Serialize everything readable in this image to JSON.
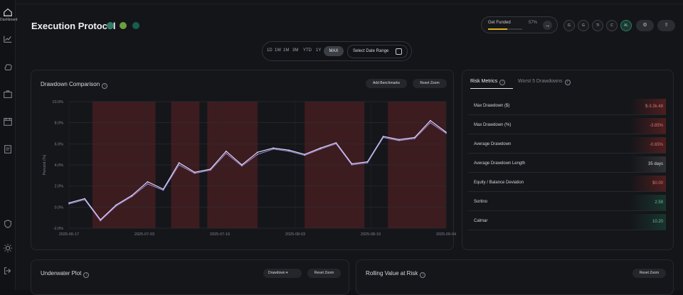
{
  "sidebar": {
    "active_label": "Dashboard",
    "icons": [
      "dashboard-icon",
      "chart-icon",
      "brain-icon",
      "briefcase-icon",
      "calendar-icon",
      "document-icon",
      "shield-icon",
      "settings-icon",
      "logout-icon"
    ]
  },
  "header": {
    "title": "Execution Protocol",
    "funded_label": "Get Funded",
    "funded_percent": "57%",
    "funded_progress": 0.57,
    "circles": [
      "G",
      "G",
      "TI",
      "C",
      "AL"
    ],
    "accent_gold": "#e0b11b"
  },
  "range_selector": {
    "tabs": [
      "1D",
      "1W",
      "1M",
      "3M",
      "YTD",
      "1Y"
    ],
    "active": "MAX",
    "date_button": "Select Date Range"
  },
  "drawdown_panel": {
    "title": "Drawdown Comparison",
    "add_benchmarks": "Add Benchmarks",
    "reset_zoom": "Reset Zoom"
  },
  "chart_data": {
    "type": "line",
    "x": [
      "2025-06-17",
      "2025-06-20",
      "2025-06-24",
      "2025-06-27",
      "2025-07-01",
      "2025-07-03",
      "2025-07-07",
      "2025-07-09",
      "2025-07-11",
      "2025-07-14",
      "2025-07-16",
      "2025-07-19",
      "2025-07-23",
      "2025-07-27",
      "2025-07-31",
      "2025-08-03",
      "2025-08-07",
      "2025-08-10",
      "2025-08-13",
      "2025-08-17",
      "2025-08-20",
      "2025-08-24",
      "2025-08-28",
      "2025-09-01",
      "2025-09-04"
    ],
    "series": [
      {
        "values": [
          0.4,
          0.8,
          -1.2,
          0.2,
          1.1,
          2.4,
          1.7,
          4.2,
          3.3,
          3.6,
          5.3,
          4.0,
          5.2,
          5.6,
          5.4,
          5.0,
          5.6,
          6.1,
          4.1,
          4.3,
          6.7,
          6.4,
          6.6,
          8.2,
          7.1
        ]
      },
      {
        "values": [
          0.3,
          0.7,
          -1.3,
          0.1,
          1.0,
          2.2,
          1.6,
          4.0,
          3.2,
          3.5,
          5.1,
          3.9,
          5.0,
          5.5,
          5.3,
          4.9,
          5.5,
          6.0,
          4.0,
          4.2,
          6.6,
          6.3,
          6.5,
          8.0,
          7.0
        ]
      }
    ],
    "ylabel": "Percent (%)",
    "ylim": [
      -2,
      10
    ],
    "yticks": [
      "-2.0%",
      "0.0%",
      "2.0%",
      "4.0%",
      "6.0%",
      "8.0%",
      "10.0%"
    ],
    "xtick_labels": [
      "2025-06-17",
      "2025-07-03",
      "2025-07-19",
      "2025-08-03",
      "2025-08-19",
      "2025-09-04"
    ],
    "drawdown_ranges": [
      [
        1.5,
        5.5
      ],
      [
        6.5,
        8.3
      ],
      [
        8.8,
        12.0
      ],
      [
        15.0,
        18.8
      ],
      [
        20.3,
        24.0
      ]
    ],
    "colors": {
      "series_a": "#d8dcff",
      "series_b": "#a98bd8",
      "shade": "#4b1f23"
    }
  },
  "risk_metrics": {
    "tabs": [
      "Risk Metrics",
      "Worst 5 Drawdowns"
    ],
    "rows": [
      {
        "label": "Max Drawdown ($)",
        "value": "$-3.3k.48",
        "tone": "neg"
      },
      {
        "label": "Max Drawdown (%)",
        "value": "-3.85%",
        "tone": "neg"
      },
      {
        "label": "Average Drawdown",
        "value": "-0.65%",
        "tone": "neg"
      },
      {
        "label": "Average Drawdown Length",
        "value": "35 days",
        "tone": "neu"
      },
      {
        "label": "Equity / Balance Deviation",
        "value": "$0.00",
        "tone": "neg"
      },
      {
        "label": "Sortino",
        "value": "2.59",
        "tone": "pos"
      },
      {
        "label": "Calmar",
        "value": "10.20",
        "tone": "pos"
      }
    ]
  },
  "underwater": {
    "title": "Underwater Plot",
    "dropdown": "Drawdown",
    "reset_zoom": "Reset Zoom"
  },
  "rolling_var": {
    "title": "Rolling Value at Risk",
    "reset_zoom": "Reset Zoom"
  }
}
